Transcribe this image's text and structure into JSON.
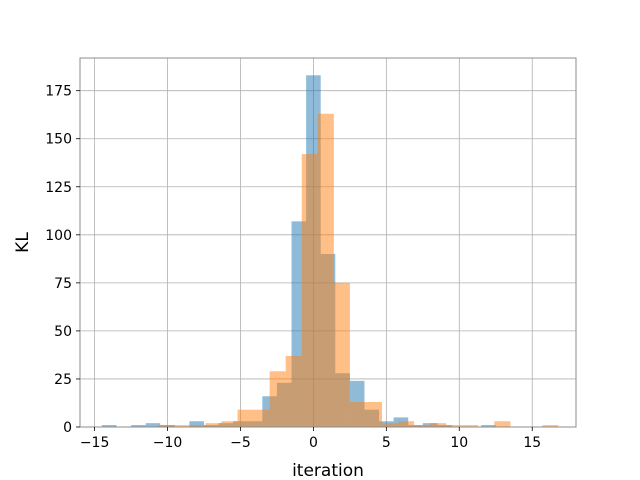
{
  "chart_data": {
    "type": "bar",
    "subtype": "overlaid-histogram",
    "title": "",
    "xlabel": "iteration",
    "ylabel": "KL",
    "xlim": [
      -16,
      18
    ],
    "ylim": [
      0,
      192
    ],
    "xticks": [
      -15,
      -10,
      -5,
      0,
      5,
      10,
      15
    ],
    "yticks": [
      0,
      25,
      50,
      75,
      100,
      125,
      150,
      175
    ],
    "grid": true,
    "legend": "none",
    "series": [
      {
        "color": "#1f77b4",
        "opacity": 0.5,
        "bins": [
          {
            "x0": -14.5,
            "x1": -13.5,
            "value": 1
          },
          {
            "x0": -12.5,
            "x1": -11.5,
            "value": 1
          },
          {
            "x0": -11.5,
            "x1": -10.5,
            "value": 2
          },
          {
            "x0": -10.5,
            "x1": -9.5,
            "value": 1
          },
          {
            "x0": -8.5,
            "x1": -7.5,
            "value": 3
          },
          {
            "x0": -7.5,
            "x1": -6.5,
            "value": 1
          },
          {
            "x0": -6.5,
            "x1": -5.5,
            "value": 2
          },
          {
            "x0": -5.5,
            "x1": -4.5,
            "value": 3
          },
          {
            "x0": -4.5,
            "x1": -3.5,
            "value": 3
          },
          {
            "x0": -3.5,
            "x1": -2.5,
            "value": 16
          },
          {
            "x0": -2.5,
            "x1": -1.5,
            "value": 23
          },
          {
            "x0": -1.5,
            "x1": -0.5,
            "value": 107
          },
          {
            "x0": -0.5,
            "x1": 0.5,
            "value": 183
          },
          {
            "x0": 0.5,
            "x1": 1.5,
            "value": 90
          },
          {
            "x0": 1.5,
            "x1": 2.5,
            "value": 28
          },
          {
            "x0": 2.5,
            "x1": 3.5,
            "value": 24
          },
          {
            "x0": 3.5,
            "x1": 4.5,
            "value": 9
          },
          {
            "x0": 4.5,
            "x1": 5.5,
            "value": 3
          },
          {
            "x0": 5.5,
            "x1": 6.5,
            "value": 5
          },
          {
            "x0": 6.5,
            "x1": 7.5,
            "value": 1
          },
          {
            "x0": 7.5,
            "x1": 8.5,
            "value": 2
          },
          {
            "x0": 8.5,
            "x1": 9.5,
            "value": 1
          },
          {
            "x0": 11.5,
            "x1": 12.5,
            "value": 1
          }
        ]
      },
      {
        "color": "#ff7f0e",
        "opacity": 0.5,
        "bins": [
          {
            "x0": -10.7,
            "x1": -9.6,
            "value": 1
          },
          {
            "x0": -9.6,
            "x1": -8.5,
            "value": 1
          },
          {
            "x0": -8.5,
            "x1": -7.4,
            "value": 1
          },
          {
            "x0": -7.4,
            "x1": -6.3,
            "value": 2
          },
          {
            "x0": -6.3,
            "x1": -5.2,
            "value": 3
          },
          {
            "x0": -5.2,
            "x1": -4.1,
            "value": 9
          },
          {
            "x0": -4.1,
            "x1": -3.0,
            "value": 9
          },
          {
            "x0": -3.0,
            "x1": -1.9,
            "value": 29
          },
          {
            "x0": -1.9,
            "x1": -0.8,
            "value": 37
          },
          {
            "x0": -0.8,
            "x1": 0.3,
            "value": 142
          },
          {
            "x0": 0.3,
            "x1": 1.4,
            "value": 163
          },
          {
            "x0": 1.4,
            "x1": 2.5,
            "value": 75
          },
          {
            "x0": 2.5,
            "x1": 3.6,
            "value": 13
          },
          {
            "x0": 3.6,
            "x1": 4.7,
            "value": 13
          },
          {
            "x0": 4.7,
            "x1": 5.8,
            "value": 2
          },
          {
            "x0": 5.8,
            "x1": 6.9,
            "value": 3
          },
          {
            "x0": 6.9,
            "x1": 8.0,
            "value": 1
          },
          {
            "x0": 8.0,
            "x1": 9.1,
            "value": 2
          },
          {
            "x0": 9.1,
            "x1": 10.2,
            "value": 1
          },
          {
            "x0": 10.2,
            "x1": 11.3,
            "value": 1
          },
          {
            "x0": 12.4,
            "x1": 13.5,
            "value": 3
          },
          {
            "x0": 15.7,
            "x1": 16.8,
            "value": 1
          }
        ]
      }
    ]
  }
}
